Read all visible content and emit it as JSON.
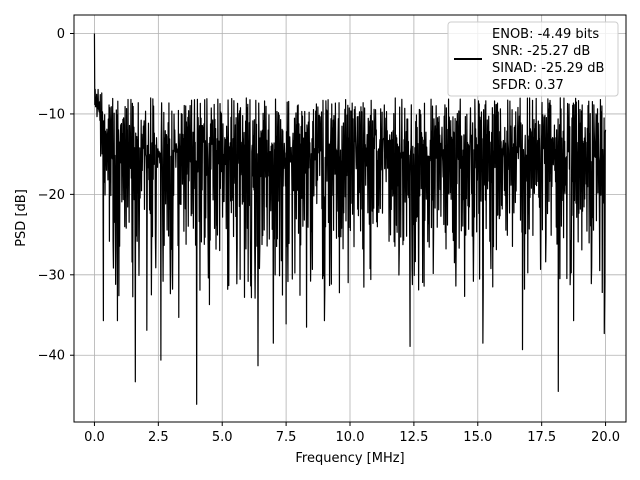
{
  "chart_data": {
    "type": "line",
    "title": "",
    "xlabel": "Frequency [MHz]",
    "ylabel": "PSD [dB]",
    "xlim": [
      -0.8,
      20.8
    ],
    "ylim": [
      -48.3,
      2.3
    ],
    "grid": true,
    "legend_position": "top-right",
    "x_ticks": [
      0.0,
      2.5,
      5.0,
      7.5,
      10.0,
      12.5,
      15.0,
      17.5,
      20.0
    ],
    "x_tick_labels": [
      "0.0",
      "2.5",
      "5.0",
      "7.5",
      "10.0",
      "12.5",
      "15.0",
      "17.5",
      "20.0"
    ],
    "y_ticks": [
      0,
      -10,
      -20,
      -30,
      -40
    ],
    "y_tick_labels": [
      "0",
      "−10",
      "−20",
      "−30",
      "−40"
    ],
    "legend": [
      "ENOB: -4.49 bits",
      "SNR: -25.27 dB",
      "SINAD: -25.29 dB",
      "SFDR: 0.37"
    ],
    "series": [
      {
        "color": "#000000",
        "x_range": [
          0,
          20
        ],
        "peak": {
          "x": 0.0,
          "y": 0.0
        },
        "typical_upper_envelope": -8,
        "typical_body_range": [
          -27,
          -12
        ],
        "deep_nulls": [
          {
            "x": 0.35,
            "y": -35.7
          },
          {
            "x": 0.9,
            "y": -35.7
          },
          {
            "x": 1.6,
            "y": -43.3
          },
          {
            "x": 2.05,
            "y": -36.9
          },
          {
            "x": 2.6,
            "y": -40.6
          },
          {
            "x": 3.3,
            "y": -35.3
          },
          {
            "x": 4.0,
            "y": -46.1
          },
          {
            "x": 4.5,
            "y": -33.7
          },
          {
            "x": 6.4,
            "y": -41.3
          },
          {
            "x": 7.0,
            "y": -38.5
          },
          {
            "x": 7.5,
            "y": -36.1
          },
          {
            "x": 8.3,
            "y": -36.5
          },
          {
            "x": 9.0,
            "y": -35.7
          },
          {
            "x": 12.35,
            "y": -38.9
          },
          {
            "x": 15.2,
            "y": -38.5
          },
          {
            "x": 16.75,
            "y": -39.3
          },
          {
            "x": 18.15,
            "y": -44.5
          },
          {
            "x": 18.75,
            "y": -35.7
          },
          {
            "x": 19.95,
            "y": -37.3
          }
        ]
      }
    ]
  }
}
